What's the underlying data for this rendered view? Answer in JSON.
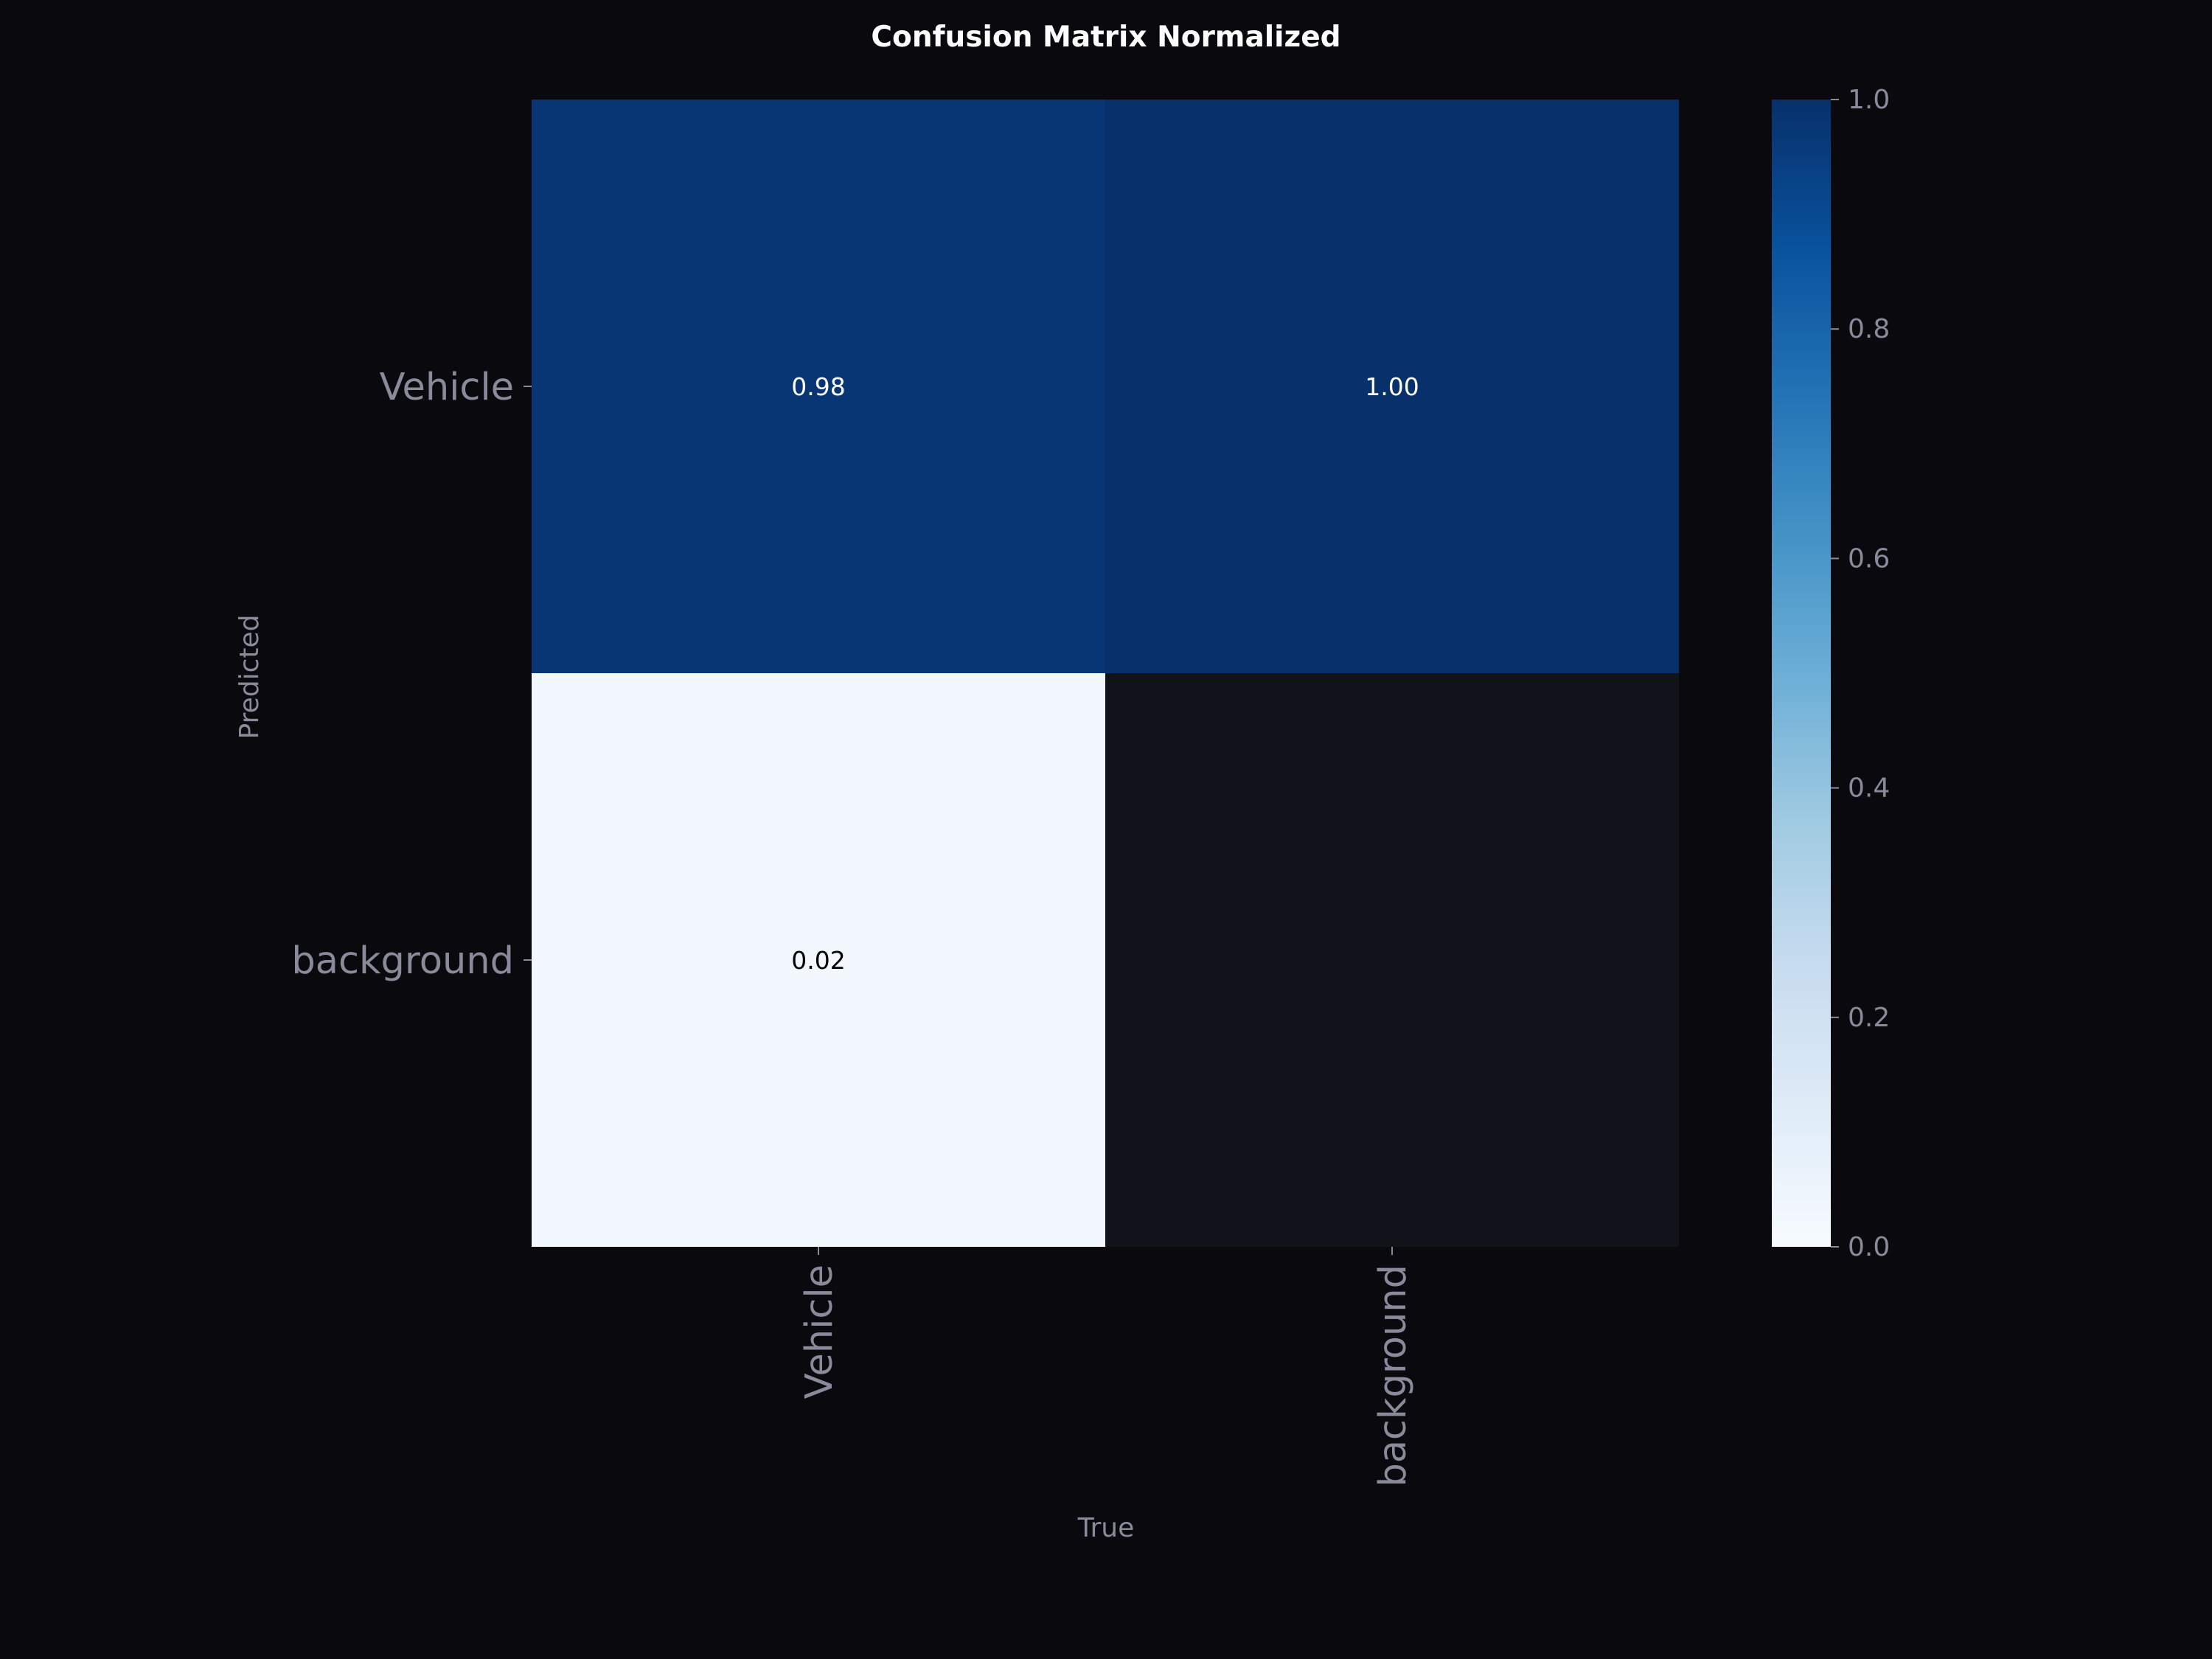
{
  "chart_data": {
    "type": "heatmap",
    "title": "Confusion Matrix Normalized",
    "xlabel": "True",
    "ylabel": "Predicted",
    "x_categories": [
      "Vehicle",
      "background"
    ],
    "y_categories": [
      "Vehicle",
      "background"
    ],
    "values": [
      [
        0.98,
        1.0
      ],
      [
        0.02,
        null
      ]
    ],
    "value_labels": [
      [
        "0.98",
        "1.00"
      ],
      [
        "0.02",
        ""
      ]
    ],
    "colorbar": {
      "min": 0.0,
      "max": 1.0,
      "ticks": [
        "0.0",
        "0.2",
        "0.4",
        "0.6",
        "0.8",
        "1.0"
      ],
      "colormap": "Blues"
    },
    "colors": {
      "background": "#0a0a0e",
      "empty_cell": "#12121a",
      "axis_text": "#8a8a9a",
      "title_text": "#ffffff"
    }
  }
}
